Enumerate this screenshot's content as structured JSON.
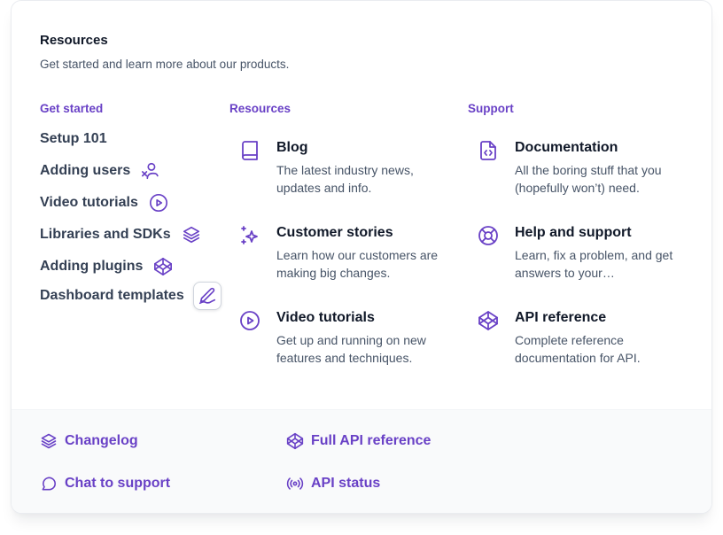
{
  "header": {
    "title": "Resources",
    "subtitle": "Get started and learn more about our products."
  },
  "columns": {
    "get_started": "Get started",
    "resources": "Resources",
    "support": "Support"
  },
  "get_started_items": [
    {
      "label": "Setup 101",
      "icon": null
    },
    {
      "label": "Adding users",
      "icon": "user-x-icon"
    },
    {
      "label": "Video tutorials",
      "icon": "play-circle-icon"
    },
    {
      "label": "Libraries and SDKs",
      "icon": "layers-icon"
    },
    {
      "label": "Adding plugins",
      "icon": "codepen-icon"
    },
    {
      "label": "Dashboard templates",
      "icon": "pen-signature-icon"
    }
  ],
  "resources_items": [
    {
      "title": "Blog",
      "desc": "The latest industry news, updates and info.",
      "icon": "book-icon"
    },
    {
      "title": "Customer stories",
      "desc": "Learn how our customers are making big changes.",
      "icon": "stars-icon"
    },
    {
      "title": "Video tutorials",
      "desc": "Get up and running on new features and techniques.",
      "icon": "play-circle-icon"
    }
  ],
  "support_items": [
    {
      "title": "Documentation",
      "desc": "All the boring stuff that you (hopefully won’t) need.",
      "icon": "file-code-icon"
    },
    {
      "title": "Help and support",
      "desc": "Learn, fix a problem, and get answers to your…",
      "icon": "life-buoy-icon"
    },
    {
      "title": "API reference",
      "desc": "Complete reference documentation for API.",
      "icon": "codepen-icon"
    }
  ],
  "footer": {
    "changelog": "Changelog",
    "full_api": "Full API reference",
    "chat": "Chat to support",
    "api_status": "API status"
  },
  "colors": {
    "accent": "#6941c6",
    "title": "#101828",
    "body": "#475467",
    "footer_bg": "#f9fafb"
  }
}
